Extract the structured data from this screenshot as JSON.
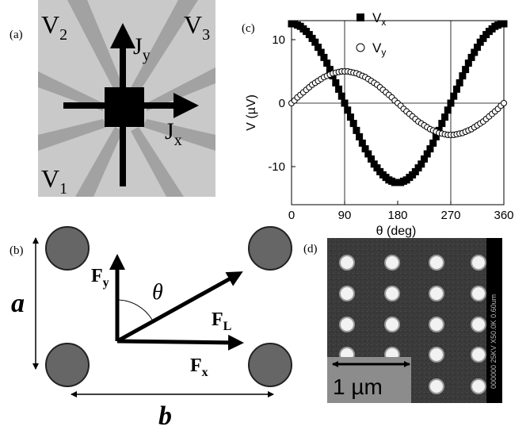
{
  "panel_a": {
    "label": "(a)",
    "v1": {
      "main": "V",
      "sub": "1"
    },
    "v2": {
      "main": "V",
      "sub": "2"
    },
    "v3": {
      "main": "V",
      "sub": "3"
    },
    "jx": {
      "main": "J",
      "sub": "x"
    },
    "jy": {
      "main": "J",
      "sub": "y"
    }
  },
  "panel_b": {
    "label": "(b)",
    "fy": {
      "main": "F",
      "sub": "y"
    },
    "fl": {
      "main": "F",
      "sub": "L"
    },
    "fx": {
      "main": "F",
      "sub": "x"
    },
    "theta": "θ",
    "a": "a",
    "b": "b"
  },
  "panel_d": {
    "label": "(d)",
    "scale": "1 µm",
    "info": "000000 25KV X50.0K 0.60um"
  },
  "chart_data": {
    "type": "scatter",
    "label": "(c)",
    "xlabel": "θ (deg)",
    "ylabel": "V (µV)",
    "xlim": [
      0,
      360
    ],
    "ylim": [
      -16,
      13
    ],
    "xticks": [
      0,
      90,
      180,
      270,
      360
    ],
    "yticks": [
      -10,
      0,
      10
    ],
    "vlines": [
      90,
      270
    ],
    "hlines": [
      0
    ],
    "x": [
      0,
      5,
      10,
      15,
      20,
      25,
      30,
      35,
      40,
      45,
      50,
      55,
      60,
      65,
      70,
      75,
      80,
      85,
      90,
      95,
      100,
      105,
      110,
      115,
      120,
      125,
      130,
      135,
      140,
      145,
      150,
      155,
      160,
      165,
      170,
      175,
      180,
      185,
      190,
      195,
      200,
      205,
      210,
      215,
      220,
      225,
      230,
      235,
      240,
      245,
      250,
      255,
      260,
      265,
      270,
      275,
      280,
      285,
      290,
      295,
      300,
      305,
      310,
      315,
      320,
      325,
      330,
      335,
      340,
      345,
      350,
      355,
      360
    ],
    "series": [
      {
        "name": "V",
        "subscript": "x",
        "marker": "square",
        "color": "#000000",
        "values": [
          12.5,
          12.5,
          12.3,
          12.1,
          11.7,
          11.3,
          10.8,
          10.2,
          9.6,
          8.8,
          8.0,
          7.2,
          6.3,
          5.3,
          4.3,
          3.2,
          2.2,
          1.1,
          0,
          -1.1,
          -2.2,
          -3.2,
          -4.3,
          -5.3,
          -6.3,
          -7.2,
          -8.0,
          -8.8,
          -9.6,
          -10.2,
          -10.8,
          -11.3,
          -11.7,
          -12.1,
          -12.3,
          -12.5,
          -12.5,
          -12.5,
          -12.3,
          -12.1,
          -11.7,
          -11.3,
          -10.8,
          -10.2,
          -9.6,
          -8.8,
          -8.0,
          -7.2,
          -6.3,
          -5.3,
          -4.3,
          -3.2,
          -2.2,
          -1.1,
          0,
          1.1,
          2.2,
          3.2,
          4.3,
          5.3,
          6.3,
          7.2,
          8.0,
          8.8,
          9.6,
          10.2,
          10.8,
          11.3,
          11.7,
          12.1,
          12.3,
          12.5,
          12.5
        ]
      },
      {
        "name": "V",
        "subscript": "y",
        "marker": "circle",
        "color": "#000000",
        "values": [
          0,
          0.4,
          0.9,
          1.3,
          1.7,
          2.1,
          2.5,
          2.9,
          3.2,
          3.5,
          3.8,
          4.1,
          4.3,
          4.5,
          4.7,
          4.8,
          4.9,
          5.0,
          5.0,
          5.0,
          4.9,
          4.8,
          4.7,
          4.5,
          4.3,
          4.1,
          3.8,
          3.5,
          3.2,
          2.9,
          2.5,
          2.1,
          1.7,
          1.3,
          0.9,
          0.4,
          0,
          -0.4,
          -0.9,
          -1.3,
          -1.7,
          -2.1,
          -2.5,
          -2.9,
          -3.2,
          -3.5,
          -3.8,
          -4.1,
          -4.3,
          -4.5,
          -4.7,
          -4.8,
          -4.9,
          -5.0,
          -5.0,
          -5.0,
          -4.9,
          -4.8,
          -4.7,
          -4.5,
          -4.3,
          -4.1,
          -3.8,
          -3.5,
          -3.2,
          -2.9,
          -2.5,
          -2.1,
          -1.7,
          -1.3,
          -0.9,
          -0.4,
          0
        ]
      }
    ]
  }
}
